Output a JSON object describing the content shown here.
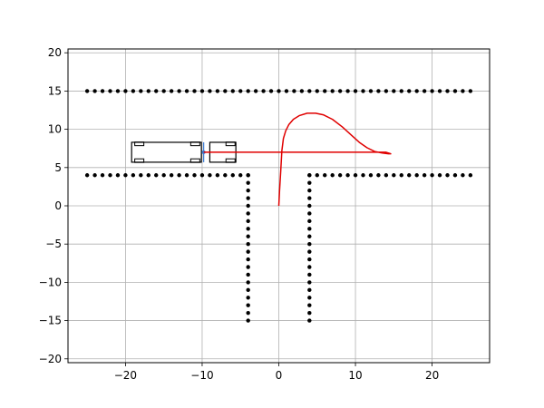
{
  "chart_data": {
    "type": "scatter",
    "title": "",
    "xlabel": "",
    "ylabel": "",
    "xlim": [
      -27.5,
      27.5
    ],
    "ylim": [
      -20.5,
      20.5
    ],
    "grid": true,
    "x_ticks": [
      -20,
      -10,
      0,
      10,
      20
    ],
    "y_ticks": [
      -20,
      -15,
      -10,
      -5,
      0,
      5,
      10,
      15,
      20
    ],
    "x_tick_labels": [
      "−20",
      "−10",
      "0",
      "10",
      "20"
    ],
    "y_tick_labels": [
      "−20",
      "−15",
      "−10",
      "−5",
      "0",
      "5",
      "10",
      "15",
      "20"
    ],
    "colors": {
      "obstacles": "#000000",
      "path": "#e00000",
      "vehicle": "#000000",
      "grid": "#b0b0b0"
    },
    "series": [
      {
        "kind": "points",
        "groups": [
          {
            "x_from": -25,
            "x_to": 25,
            "step": 1,
            "y": 15
          },
          {
            "x_from": -25,
            "x_to": -4,
            "step": 1,
            "y": 4
          },
          {
            "x_from": 4,
            "x_to": 25,
            "step": 1,
            "y": 4
          },
          {
            "x": -4,
            "y_from": -15,
            "y_to": 4,
            "step": 1
          },
          {
            "x": 4,
            "y_from": -15,
            "y_to": 4,
            "step": 1
          }
        ]
      },
      {
        "kind": "line",
        "x": [
          0,
          0.1,
          0.25,
          0.4,
          0.6,
          0.9,
          1.3,
          1.9,
          2.7,
          3.7,
          4.8,
          5.8,
          7.0,
          8.3,
          9.5,
          10.5,
          11.5,
          12.5,
          13.5,
          14.3,
          14.6,
          14.0,
          12.0,
          9.0,
          6.0,
          3.0,
          0.5,
          -2.0,
          -5.0,
          -8.0,
          -9.8
        ],
        "y": [
          0,
          2.0,
          4.5,
          7.2,
          8.8,
          9.8,
          10.6,
          11.3,
          11.8,
          12.1,
          12.1,
          11.9,
          11.3,
          10.3,
          9.2,
          8.3,
          7.6,
          7.1,
          6.9,
          6.8,
          6.8,
          7.0,
          7.0,
          7.0,
          7.0,
          7.0,
          7.0,
          7.0,
          7.0,
          7.0,
          7.0
        ]
      },
      {
        "kind": "vehicle",
        "trailer": {
          "x0": -19.2,
          "x1": -10.1,
          "y0": 5.7,
          "y1": 8.3
        },
        "tractor": {
          "x0": -9.0,
          "x1": -5.6,
          "y0": 5.7,
          "y1": 8.3
        },
        "hitch": {
          "x": -9.8,
          "y": 7.0
        }
      }
    ]
  }
}
